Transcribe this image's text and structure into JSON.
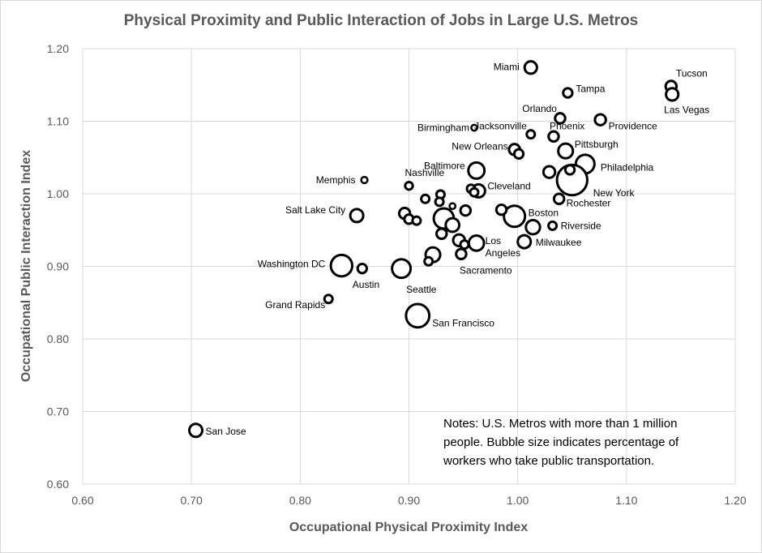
{
  "colors": {
    "grid": "#d9d9d9",
    "marker": "#000000",
    "text": "#595959",
    "border": "#d9d9d9"
  },
  "chart_data": {
    "type": "scatter",
    "title": "Physical Proximity and Public Interaction of Jobs in Large U.S. Metros",
    "xlabel": "Occupational Physical Proximity Index",
    "ylabel": "Occupational Public Interaction Index",
    "xlim": [
      0.6,
      1.2
    ],
    "ylim": [
      0.6,
      1.2
    ],
    "xticks": [
      "0.60",
      "0.70",
      "0.80",
      "0.90",
      "1.00",
      "1.10",
      "1.20"
    ],
    "yticks": [
      "0.60",
      "0.70",
      "0.80",
      "0.90",
      "1.00",
      "1.10",
      "1.20"
    ],
    "grid": true,
    "notes": [
      "Notes: U.S. Metros with more than 1 million",
      "people. Bubble size indicates percentage of",
      "workers who take public transportation."
    ],
    "size_meaning": "percentage of workers who take public transportation",
    "points": [
      {
        "name": "Miami",
        "label": [
          "Miami"
        ],
        "x": 1.012,
        "y": 1.174,
        "size": 3.5
      },
      {
        "name": "Tampa",
        "label": [
          "Tampa"
        ],
        "x": 1.046,
        "y": 1.139,
        "size": 1.5
      },
      {
        "name": "Tucson",
        "label": [
          "Tucson"
        ],
        "x": 1.141,
        "y": 1.148,
        "size": 2.5
      },
      {
        "name": "Las Vegas",
        "label": [
          "Las Vegas"
        ],
        "x": 1.142,
        "y": 1.137,
        "size": 3.5
      },
      {
        "name": "Orlando",
        "label": [
          "Orlando"
        ],
        "x": 1.039,
        "y": 1.104,
        "size": 2.0
      },
      {
        "name": "Providence",
        "label": [
          "Providence"
        ],
        "x": 1.076,
        "y": 1.102,
        "size": 2.5
      },
      {
        "name": "Birmingham",
        "label": [
          "Birmingham"
        ],
        "x": 0.96,
        "y": 1.091,
        "size": 0.3
      },
      {
        "name": "Jacksonville",
        "label": [
          "Jacksonville"
        ],
        "x": 1.012,
        "y": 1.082,
        "size": 1.0
      },
      {
        "name": "Phoenix",
        "label": [
          "Phoenix"
        ],
        "x": 1.033,
        "y": 1.079,
        "size": 2.0
      },
      {
        "name": "New Orleans",
        "label": [
          "New Orleans"
        ],
        "x": 0.997,
        "y": 1.061,
        "size": 2.5
      },
      {
        "name": "Pittsburgh",
        "label": [
          "Pittsburgh"
        ],
        "x": 1.044,
        "y": 1.059,
        "size": 5.5
      },
      {
        "name": "Baltimore",
        "label": [
          "Baltimore"
        ],
        "x": 0.962,
        "y": 1.032,
        "size": 7.0
      },
      {
        "name": "Philadelphia",
        "label": [
          "Philadelphia"
        ],
        "x": 1.062,
        "y": 1.041,
        "size": 10.0
      },
      {
        "name": "New York",
        "label": [
          "New York"
        ],
        "x": 1.05,
        "y": 1.019,
        "size": 31.0
      },
      {
        "name": "Memphis",
        "label": [
          "Memphis"
        ],
        "x": 0.859,
        "y": 1.019,
        "size": 0.4
      },
      {
        "name": "Nashville",
        "label": [
          "Nashville"
        ],
        "x": 0.9,
        "y": 1.011,
        "size": 0.8
      },
      {
        "name": "Cleveland",
        "label": [
          "Cleveland"
        ],
        "x": 0.964,
        "y": 1.004,
        "size": 4.0
      },
      {
        "name": "Rochester",
        "label": [
          "Rochester"
        ],
        "x": 1.038,
        "y": 0.993,
        "size": 2.0
      },
      {
        "name": "Salt Lake City",
        "label": [
          "Salt Lake City"
        ],
        "x": 0.852,
        "y": 0.97,
        "size": 4.0
      },
      {
        "name": "Boston",
        "label": [
          "Boston"
        ],
        "x": 0.997,
        "y": 0.969,
        "size": 13.5
      },
      {
        "name": "Riverside",
        "label": [
          "Riverside"
        ],
        "x": 1.032,
        "y": 0.956,
        "size": 1.0
      },
      {
        "name": "Los Angeles",
        "label": [
          "Los",
          "Angeles"
        ],
        "x": 0.962,
        "y": 0.932,
        "size": 6.0
      },
      {
        "name": "Milwaukee",
        "label": [
          "Milwaukee"
        ],
        "x": 1.006,
        "y": 0.934,
        "size": 4.0
      },
      {
        "name": "Sacramento",
        "label": [
          "Sacramento"
        ],
        "x": 0.948,
        "y": 0.917,
        "size": 2.0
      },
      {
        "name": "Washington DC",
        "label": [
          "Washington DC"
        ],
        "x": 0.838,
        "y": 0.901,
        "size": 14.0
      },
      {
        "name": "Austin",
        "label": [
          "Austin"
        ],
        "x": 0.857,
        "y": 0.897,
        "size": 1.5
      },
      {
        "name": "Seattle",
        "label": [
          "Seattle"
        ],
        "x": 0.893,
        "y": 0.897,
        "size": 10.0
      },
      {
        "name": "Grand Rapids",
        "label": [
          "Grand Rapids"
        ],
        "x": 0.826,
        "y": 0.855,
        "size": 1.0
      },
      {
        "name": "San Francisco",
        "label": [
          "San Francisco"
        ],
        "x": 0.908,
        "y": 0.832,
        "size": 17.0
      },
      {
        "name": "San Jose",
        "label": [
          "San Jose"
        ],
        "x": 0.704,
        "y": 0.674,
        "size": 4.0
      },
      {
        "name": "Unlabeled metro",
        "label": [],
        "x": 0.932,
        "y": 0.966,
        "size": 12.0
      },
      {
        "name": "Unlabeled metro",
        "label": [],
        "x": 0.94,
        "y": 0.957,
        "size": 4.5
      },
      {
        "name": "Unlabeled metro",
        "label": [],
        "x": 0.896,
        "y": 0.973,
        "size": 2.5
      },
      {
        "name": "Unlabeled metro",
        "label": [],
        "x": 0.9,
        "y": 0.965,
        "size": 1.5
      },
      {
        "name": "Unlabeled metro",
        "label": [],
        "x": 0.907,
        "y": 0.963,
        "size": 1.0
      },
      {
        "name": "Unlabeled metro",
        "label": [],
        "x": 0.922,
        "y": 0.916,
        "size": 5.5
      },
      {
        "name": "Unlabeled metro",
        "label": [],
        "x": 0.918,
        "y": 0.907,
        "size": 1.0
      },
      {
        "name": "Unlabeled metro",
        "label": [],
        "x": 0.946,
        "y": 0.936,
        "size": 3.0
      },
      {
        "name": "Unlabeled metro",
        "label": [],
        "x": 0.951,
        "y": 0.93,
        "size": 1.0
      },
      {
        "name": "Unlabeled metro",
        "label": [],
        "x": 0.93,
        "y": 0.945,
        "size": 2.0
      },
      {
        "name": "Unlabeled metro",
        "label": [],
        "x": 0.915,
        "y": 0.993,
        "size": 1.0
      },
      {
        "name": "Unlabeled metro",
        "label": [],
        "x": 0.929,
        "y": 0.999,
        "size": 1.0
      },
      {
        "name": "Unlabeled metro",
        "label": [],
        "x": 0.928,
        "y": 0.989,
        "size": 1.0
      },
      {
        "name": "Unlabeled metro",
        "label": [],
        "x": 0.94,
        "y": 0.983,
        "size": 0.3
      },
      {
        "name": "Unlabeled metro",
        "label": [],
        "x": 0.952,
        "y": 0.977,
        "size": 2.0
      },
      {
        "name": "Unlabeled metro",
        "label": [],
        "x": 0.957,
        "y": 1.007,
        "size": 1.0
      },
      {
        "name": "Unlabeled metro",
        "label": [],
        "x": 0.96,
        "y": 1.002,
        "size": 1.0
      },
      {
        "name": "Unlabeled metro",
        "label": [],
        "x": 0.985,
        "y": 0.978,
        "size": 2.0
      },
      {
        "name": "Unlabeled metro",
        "label": [],
        "x": 1.014,
        "y": 0.954,
        "size": 5.0
      },
      {
        "name": "Unlabeled metro",
        "label": [],
        "x": 1.001,
        "y": 1.055,
        "size": 1.5
      },
      {
        "name": "Unlabeled metro",
        "label": [],
        "x": 1.029,
        "y": 1.03,
        "size": 3.0
      },
      {
        "name": "Unlabeled metro",
        "label": [],
        "x": 1.048,
        "y": 1.033,
        "size": 1.5
      }
    ]
  }
}
